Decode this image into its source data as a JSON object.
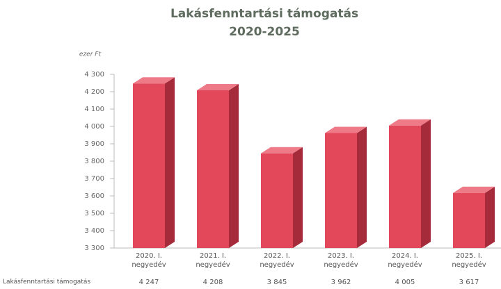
{
  "chart_data": {
    "type": "bar3d",
    "title": "Lakásfenntartási támogatás",
    "subtitle": "2020-2025",
    "y_label": "ezer Ft",
    "categories": [
      "2020. I. negyedév",
      "2021. I. negyedév",
      "2022. I. negyedév",
      "2023. I. negyedév",
      "2024. I. negyedév",
      "2025. I. negyedév"
    ],
    "series": [
      {
        "name": "Lakásfenntartási támogatás",
        "color": "#e2475a",
        "values": [
          4247,
          4208,
          3845,
          3962,
          4005,
          3617
        ],
        "value_labels": [
          "4 247",
          "4 208",
          "3 845",
          "3 962",
          "4 005",
          "3 617"
        ]
      }
    ],
    "ylim": [
      3300,
      4300
    ],
    "yticks": [
      {
        "value": 3300,
        "label": "3 300"
      },
      {
        "value": 3400,
        "label": "3 400"
      },
      {
        "value": 3500,
        "label": "3 500"
      },
      {
        "value": 3600,
        "label": "3 600"
      },
      {
        "value": 3700,
        "label": "3 700"
      },
      {
        "value": 3800,
        "label": "3 800"
      },
      {
        "value": 3900,
        "label": "3 900"
      },
      {
        "value": 4000,
        "label": "4 000"
      },
      {
        "value": 4100,
        "label": "4 100"
      },
      {
        "value": 4200,
        "label": "4 200"
      },
      {
        "value": 4300,
        "label": "4 300"
      }
    ]
  }
}
